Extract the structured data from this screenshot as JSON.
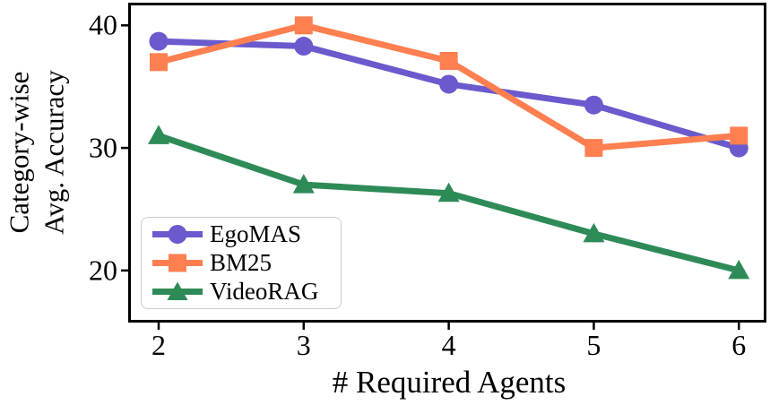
{
  "figure": {
    "background": "#ffffff",
    "axis_color": "#000000"
  },
  "chart_data": {
    "type": "line",
    "title": "",
    "xlabel": "# Required Agents",
    "ylabel_line1": "Category-wise",
    "ylabel_line2": "Avg. Accuracy",
    "x": [
      2,
      3,
      4,
      5,
      6
    ],
    "xticks": [
      "2",
      "3",
      "4",
      "5",
      "6"
    ],
    "yticks": [
      "20",
      "30",
      "40"
    ],
    "ytick_values": [
      20,
      30,
      40
    ],
    "xlim": [
      1.79,
      6.19
    ],
    "ylim": [
      15.75,
      41.85
    ],
    "grid": false,
    "legend_position": "lower left",
    "line_width": 7,
    "marker_size": 21,
    "series": [
      {
        "name": "EgoMAS",
        "color": "#6A5ACD",
        "marker": "circle",
        "values": [
          38.7,
          38.3,
          35.2,
          33.5,
          30.0
        ]
      },
      {
        "name": "BM25",
        "color": "#FF7F50",
        "marker": "square",
        "values": [
          37.0,
          40.0,
          37.1,
          30.0,
          31.0
        ]
      },
      {
        "name": "VideoRAG",
        "color": "#2E8B57",
        "marker": "triangle",
        "values": [
          31.0,
          27.0,
          26.3,
          23.0,
          20.0
        ]
      }
    ]
  }
}
